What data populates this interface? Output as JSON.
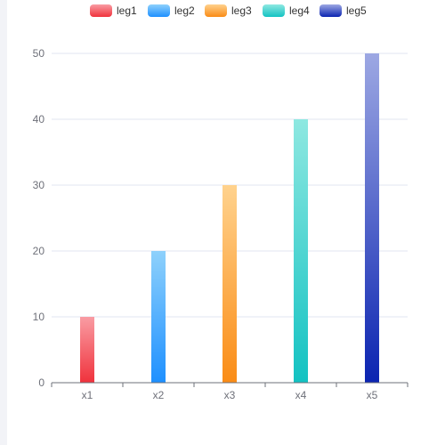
{
  "chart_data": {
    "type": "bar",
    "categories": [
      "x1",
      "x2",
      "x3",
      "x4",
      "x5"
    ],
    "values": [
      10,
      20,
      30,
      40,
      50
    ],
    "legend": [
      {
        "name": "leg1",
        "color_top": "#f99ca3",
        "color_bottom": "#f0323c"
      },
      {
        "name": "leg2",
        "color_top": "#8ed1fc",
        "color_bottom": "#1e90ff"
      },
      {
        "name": "leg3",
        "color_top": "#ffd28d",
        "color_bottom": "#fa8c16"
      },
      {
        "name": "leg4",
        "color_top": "#8ee8e1",
        "color_bottom": "#13c2c2"
      },
      {
        "name": "leg5",
        "color_top": "#9da8e3",
        "color_bottom": "#0b24b1"
      }
    ],
    "yticks": [
      0,
      10,
      20,
      30,
      40,
      50
    ],
    "ylim": [
      0,
      50
    ],
    "grid": true,
    "legend_position": "top-center",
    "title": "",
    "xlabel": "",
    "ylabel": ""
  }
}
